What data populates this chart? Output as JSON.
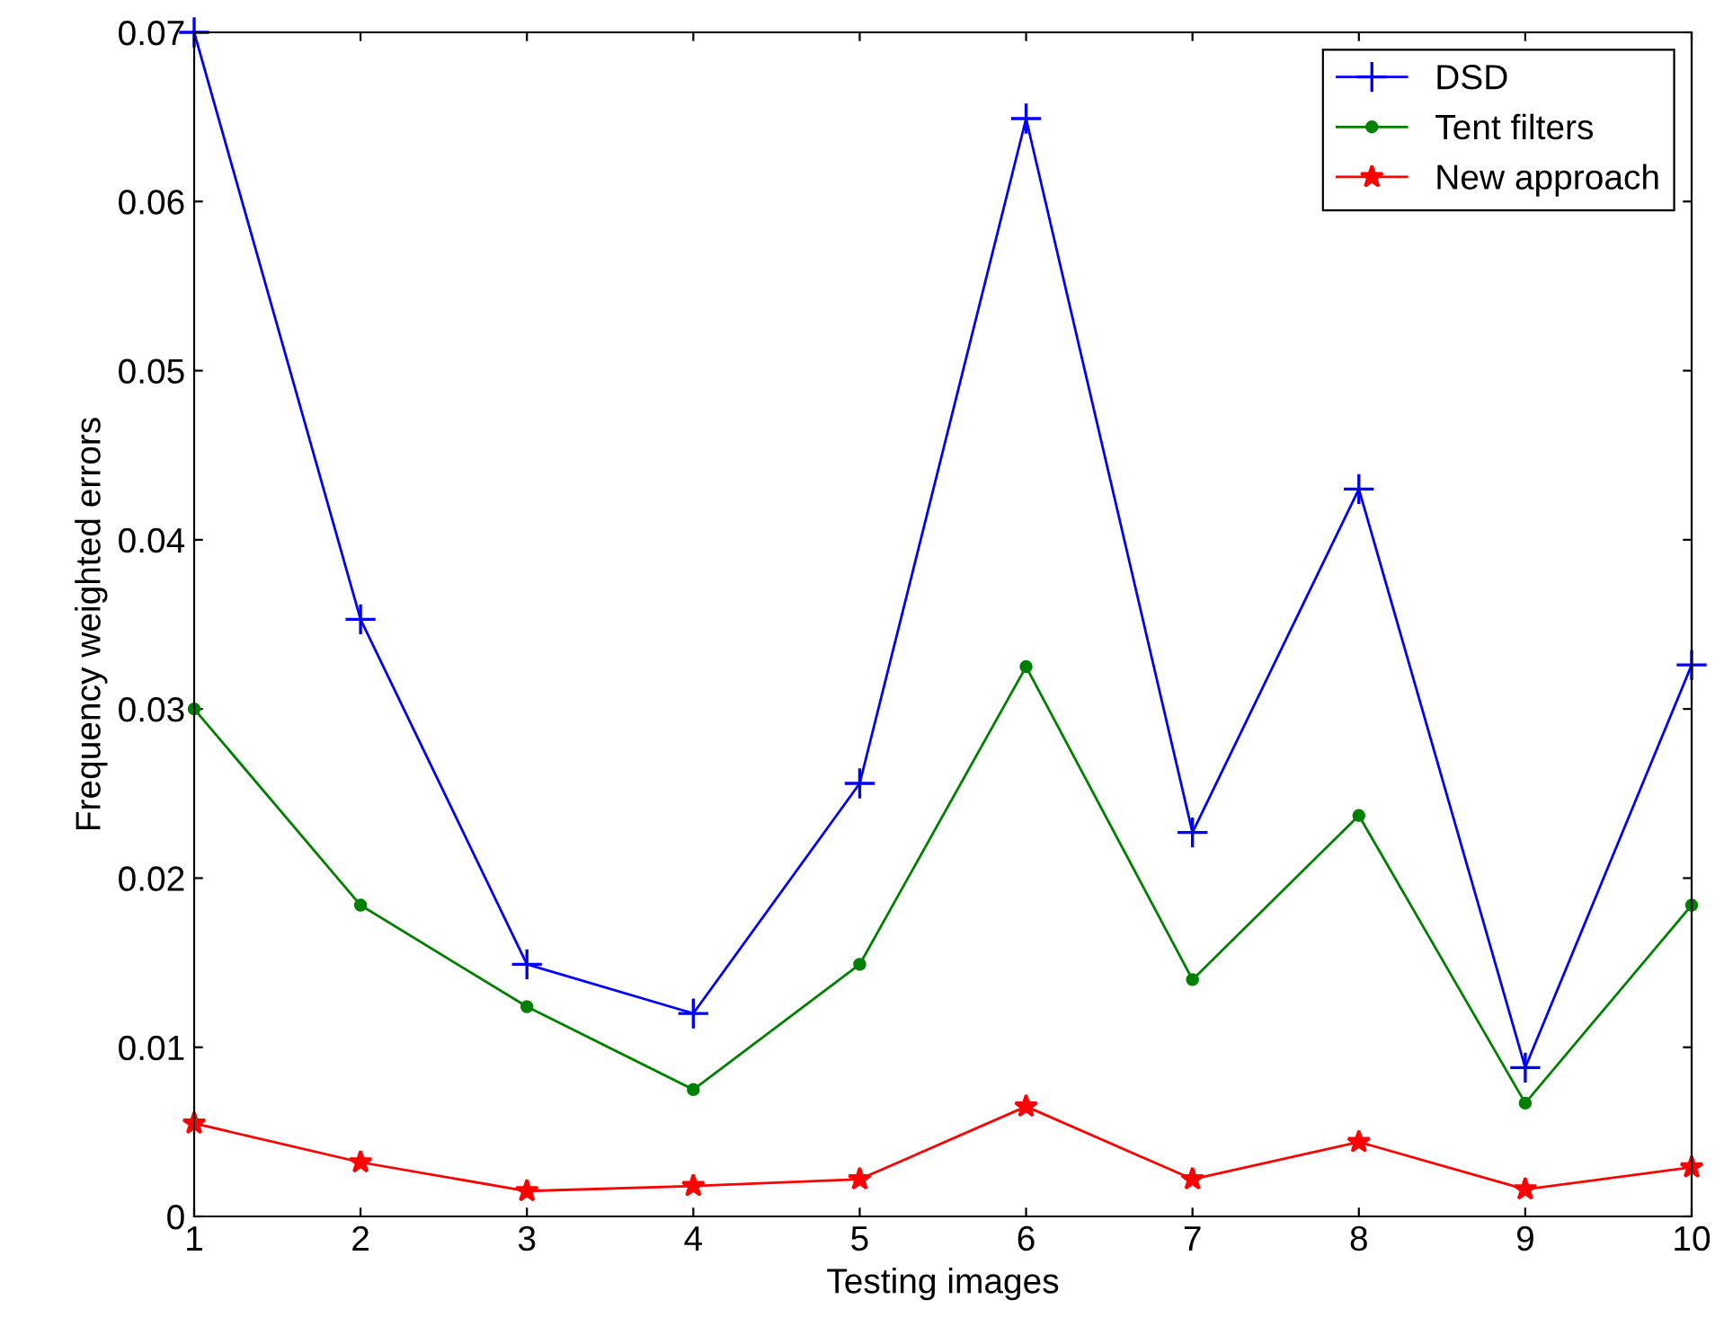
{
  "chart_data": {
    "type": "line",
    "xlabel": "Testing images",
    "ylabel": "Frequency weighted errors",
    "x": [
      1,
      2,
      3,
      4,
      5,
      6,
      7,
      8,
      9,
      10
    ],
    "series": [
      {
        "name": "DSD",
        "color": "#0000ff",
        "marker": "cross",
        "values": [
          0.07,
          0.0353,
          0.0149,
          0.012,
          0.0256,
          0.0649,
          0.0227,
          0.043,
          0.0088,
          0.0326
        ]
      },
      {
        "name": "Tent filters",
        "color": "#008000",
        "marker": "circle",
        "values": [
          0.03,
          0.0184,
          0.0124,
          0.0075,
          0.0149,
          0.0325,
          0.014,
          0.0237,
          0.0067,
          0.0184
        ]
      },
      {
        "name": "New approach",
        "color": "#ff0000",
        "marker": "star",
        "values": [
          0.0055,
          0.0032,
          0.0015,
          0.0018,
          0.0022,
          0.0065,
          0.0022,
          0.0044,
          0.0016,
          0.0029
        ]
      }
    ],
    "xlim": [
      1,
      10
    ],
    "xticks": [
      1,
      2,
      3,
      4,
      5,
      6,
      7,
      8,
      9,
      10
    ],
    "ylim": [
      0,
      0.07
    ],
    "yticks": [
      0,
      0.01,
      0.02,
      0.03,
      0.04,
      0.05,
      0.06,
      0.07
    ],
    "grid": false,
    "legend": "top right",
    "line_style": "solid"
  }
}
